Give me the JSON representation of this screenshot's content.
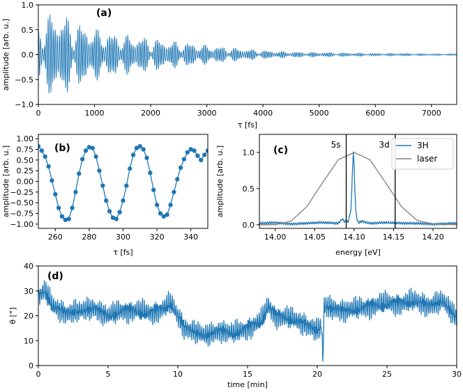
{
  "colors": {
    "blue": "#1f77b4",
    "gray": "#7f7f7f",
    "frame": "#000000"
  },
  "chart_data": [
    {
      "id": "a",
      "panel_label": "(a)",
      "type": "line",
      "xlabel": "τ [fs]",
      "ylabel": "amplitude [arb. u.]",
      "xlim": [
        0,
        7450
      ],
      "ylim": [
        -1.0,
        1.0
      ],
      "xticks": [
        0,
        1000,
        2000,
        3000,
        4000,
        5000,
        6000,
        7000
      ],
      "yticks": [
        -1.0,
        -0.5,
        0.0,
        0.5,
        1.0
      ],
      "ytick_labels": [
        "−1.0",
        "−0.5",
        "0.0",
        "0.5",
        "1.0"
      ],
      "grid": false,
      "series": [
        {
          "color": "#1f77b4",
          "period_fs": 33,
          "envelope": {
            "x": [
              0,
              50,
              150,
              300,
              450,
              600,
              800,
              1000,
              1200,
              1500,
              1800,
              2100,
              2500,
              3000,
              3500,
              4000,
              4500,
              5000,
              5500,
              6000,
              6500,
              7000,
              7450
            ],
            "amplitude": [
              0.55,
              0.75,
              0.82,
              0.88,
              0.85,
              0.7,
              0.62,
              0.55,
              0.48,
              0.42,
              0.38,
              0.33,
              0.27,
              0.2,
              0.14,
              0.09,
              0.06,
              0.05,
              0.04,
              0.03,
              0.03,
              0.02,
              0.02
            ]
          }
        }
      ]
    },
    {
      "id": "b",
      "panel_label": "(b)",
      "type": "line",
      "xlabel": "τ [fs]",
      "ylabel": "amplitude [arb. u.]",
      "xlim": [
        250,
        350
      ],
      "ylim": [
        -1.1,
        1.1
      ],
      "xticks": [
        260,
        280,
        300,
        320,
        340
      ],
      "yticks": [
        -1.0,
        -0.75,
        -0.5,
        -0.25,
        0.0,
        0.25,
        0.5,
        0.75,
        1.0
      ],
      "ytick_labels": [
        "−1.00",
        "−0.75",
        "−0.50",
        "−0.25",
        "0.00",
        "0.25",
        "0.50",
        "0.75",
        "1.00"
      ],
      "grid": false,
      "series": [
        {
          "color": "#1f77b4",
          "marker": "circle",
          "x": [
            250,
            252,
            254,
            256,
            258,
            260,
            262,
            264,
            266,
            268,
            270,
            272,
            274,
            276,
            278,
            280,
            282,
            284,
            286,
            288,
            290,
            292,
            294,
            296,
            298,
            300,
            302,
            304,
            306,
            308,
            310,
            312,
            314,
            316,
            318,
            320,
            322,
            324,
            326,
            328,
            330,
            332,
            334,
            336,
            338,
            340,
            342,
            344,
            346,
            348,
            350
          ],
          "y": [
            0.82,
            0.72,
            0.58,
            0.35,
            0.02,
            -0.3,
            -0.62,
            -0.82,
            -0.9,
            -0.88,
            -0.62,
            -0.25,
            0.18,
            0.52,
            0.72,
            0.8,
            0.78,
            0.58,
            0.25,
            -0.1,
            -0.45,
            -0.7,
            -0.85,
            -0.88,
            -0.72,
            -0.45,
            -0.1,
            0.3,
            0.62,
            0.78,
            0.82,
            0.75,
            0.55,
            0.2,
            -0.2,
            -0.55,
            -0.75,
            -0.82,
            -0.78,
            -0.55,
            -0.25,
            0.05,
            0.32,
            0.52,
            0.68,
            0.75,
            0.72,
            0.6,
            0.5,
            0.62,
            0.72
          ]
        }
      ]
    },
    {
      "id": "c",
      "panel_label": "(c)",
      "type": "line",
      "xlabel": "energy [eV]",
      "ylabel": "amplitude [arb. u.]",
      "xlim": [
        13.98,
        14.23
      ],
      "ylim": [
        -0.05,
        1.25
      ],
      "xticks": [
        14.0,
        14.05,
        14.1,
        14.15,
        14.2
      ],
      "xtick_labels": [
        "14.00",
        "14.05",
        "14.10",
        "14.15",
        "14.20"
      ],
      "yticks": [
        0.0,
        0.5,
        1.0
      ],
      "ytick_labels": [
        "0.0",
        "0.5",
        "1.0"
      ],
      "grid": false,
      "legend": {
        "position": "top-right",
        "entries": [
          "3H",
          "laser"
        ]
      },
      "annotations": [
        {
          "text": "5s",
          "x": 14.09
        },
        {
          "text": "3d",
          "x": 14.152
        }
      ],
      "series": [
        {
          "name": "3H",
          "color": "#1f77b4",
          "x": [
            13.98,
            14.0,
            14.02,
            14.04,
            14.06,
            14.08,
            14.085,
            14.088,
            14.09,
            14.092,
            14.094,
            14.096,
            14.097,
            14.098,
            14.099,
            14.1,
            14.101,
            14.102,
            14.104,
            14.106,
            14.11,
            14.12,
            14.14,
            14.16,
            14.18,
            14.2,
            14.23
          ],
          "y": [
            0.02,
            0.03,
            0.01,
            0.02,
            0.03,
            0.02,
            0.08,
            0.04,
            0.06,
            0.03,
            0.1,
            0.22,
            0.45,
            0.78,
            1.0,
            0.82,
            0.48,
            0.2,
            0.06,
            0.03,
            0.05,
            0.02,
            0.03,
            0.02,
            0.02,
            0.01,
            0.02
          ]
        },
        {
          "name": "laser",
          "color": "#7f7f7f",
          "x": [
            13.98,
            14.0,
            14.02,
            14.04,
            14.06,
            14.08,
            14.1,
            14.12,
            14.14,
            14.16,
            14.18,
            14.2,
            14.23
          ],
          "y": [
            0.0,
            0.0,
            0.05,
            0.25,
            0.58,
            0.9,
            1.0,
            0.9,
            0.58,
            0.25,
            0.06,
            0.01,
            0.0
          ]
        }
      ]
    },
    {
      "id": "d",
      "panel_label": "(d)",
      "type": "line",
      "xlabel": "time [min]",
      "ylabel": "θ [°]",
      "xlim": [
        0,
        30
      ],
      "ylim": [
        0,
        40
      ],
      "xticks": [
        0,
        5,
        10,
        15,
        20,
        25,
        30
      ],
      "yticks": [
        0,
        10,
        20,
        30,
        40
      ],
      "grid": false,
      "series": [
        {
          "color": "#1f77b4",
          "x": [
            0,
            0.5,
            1,
            2,
            3,
            4,
            5,
            6,
            7,
            8,
            9,
            9.5,
            10,
            10.5,
            11,
            12,
            13,
            14,
            15,
            16,
            16.5,
            17,
            18,
            19,
            20,
            20.3,
            20.4,
            20.5,
            21,
            22,
            23,
            24,
            25,
            26,
            27,
            28,
            29,
            30
          ],
          "y": [
            28,
            30,
            24,
            21,
            22,
            23,
            20,
            22,
            22,
            21,
            23,
            25,
            20,
            15,
            14,
            12,
            14,
            13,
            15,
            18,
            24,
            20,
            19,
            17,
            14,
            16,
            3,
            24,
            23,
            22,
            23,
            24,
            25,
            25,
            26,
            24,
            26,
            19
          ]
        }
      ]
    }
  ]
}
